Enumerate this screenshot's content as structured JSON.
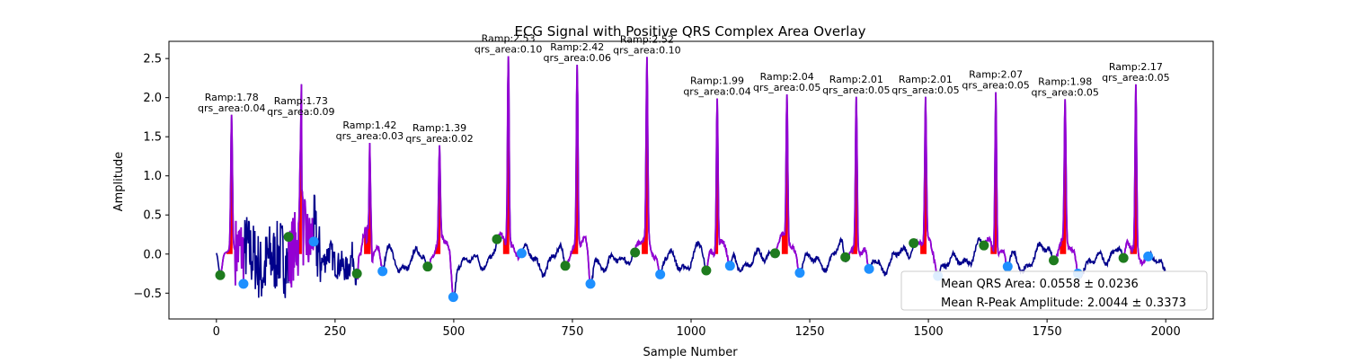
{
  "chart_data": {
    "type": "line",
    "title": "ECG Signal with Positive QRS Complex Area Overlay",
    "xlabel": "Sample Number",
    "ylabel": "Amplitude",
    "xlim": [
      -100,
      2100
    ],
    "ylim": [
      -0.83,
      2.72
    ],
    "xticks": [
      0,
      250,
      500,
      750,
      1000,
      1250,
      1500,
      1750,
      2000
    ],
    "yticks": [
      -0.5,
      0.0,
      0.5,
      1.0,
      1.5,
      2.0,
      2.5
    ],
    "xtick_labels": [
      "0",
      "250",
      "500",
      "750",
      "1000",
      "1250",
      "1500",
      "1750",
      "2000"
    ],
    "ytick_labels": [
      "−0.5",
      "0.0",
      "0.5",
      "1.0",
      "1.5",
      "2.0",
      "2.5"
    ],
    "colors": {
      "signal": "#00008b",
      "qrs_segment": "#9400d3",
      "qrs_area_fill": "#ff0000",
      "q_onset_marker": "#1e7b1e",
      "s_offset_marker": "#1e90ff"
    },
    "r_peaks": [
      {
        "x": 32,
        "y": 1.78,
        "ramp": "Ramp:1.78",
        "qrs_area": "qrs_area:0.04"
      },
      {
        "x": 178,
        "y": 1.73,
        "ramp": "Ramp:1.73",
        "qrs_area": "qrs_area:0.09"
      },
      {
        "x": 323,
        "y": 1.42,
        "ramp": "Ramp:1.42",
        "qrs_area": "qrs_area:0.03"
      },
      {
        "x": 470,
        "y": 1.39,
        "ramp": "Ramp:1.39",
        "qrs_area": "qrs_area:0.02"
      },
      {
        "x": 615,
        "y": 2.53,
        "ramp": "Ramp:2.53",
        "qrs_area": "qrs_area:0.10"
      },
      {
        "x": 760,
        "y": 2.42,
        "ramp": "Ramp:2.42",
        "qrs_area": "qrs_area:0.06"
      },
      {
        "x": 907,
        "y": 2.52,
        "ramp": "Ramp:2.52",
        "qrs_area": "qrs_area:0.10"
      },
      {
        "x": 1055,
        "y": 1.99,
        "ramp": "Ramp:1.99",
        "qrs_area": "qrs_area:0.04"
      },
      {
        "x": 1202,
        "y": 2.04,
        "ramp": "Ramp:2.04",
        "qrs_area": "qrs_area:0.05"
      },
      {
        "x": 1348,
        "y": 2.01,
        "ramp": "Ramp:2.01",
        "qrs_area": "qrs_area:0.05"
      },
      {
        "x": 1494,
        "y": 2.01,
        "ramp": "Ramp:2.01",
        "qrs_area": "qrs_area:0.05"
      },
      {
        "x": 1642,
        "y": 2.07,
        "ramp": "Ramp:2.07",
        "qrs_area": "qrs_area:0.05"
      },
      {
        "x": 1788,
        "y": 1.98,
        "ramp": "Ramp:1.98",
        "qrs_area": "qrs_area:0.05"
      },
      {
        "x": 1937,
        "y": 2.17,
        "ramp": "Ramp:2.17",
        "qrs_area": "qrs_area:0.05"
      }
    ],
    "q_onsets": [
      {
        "x": 8,
        "y": -0.27
      },
      {
        "x": 152,
        "y": 0.22
      },
      {
        "x": 296,
        "y": -0.25
      },
      {
        "x": 445,
        "y": -0.16
      },
      {
        "x": 591,
        "y": 0.19
      },
      {
        "x": 735,
        "y": -0.15
      },
      {
        "x": 882,
        "y": 0.02
      },
      {
        "x": 1032,
        "y": -0.21
      },
      {
        "x": 1177,
        "y": 0.01
      },
      {
        "x": 1325,
        "y": -0.04
      },
      {
        "x": 1469,
        "y": 0.14
      },
      {
        "x": 1617,
        "y": 0.11
      },
      {
        "x": 1764,
        "y": -0.08
      },
      {
        "x": 1911,
        "y": -0.05
      }
    ],
    "s_offsets": [
      {
        "x": 57,
        "y": -0.38
      },
      {
        "x": 205,
        "y": 0.16
      },
      {
        "x": 350,
        "y": -0.22
      },
      {
        "x": 499,
        "y": -0.55
      },
      {
        "x": 643,
        "y": 0.01
      },
      {
        "x": 788,
        "y": -0.38
      },
      {
        "x": 935,
        "y": -0.26
      },
      {
        "x": 1082,
        "y": -0.15
      },
      {
        "x": 1229,
        "y": -0.24
      },
      {
        "x": 1375,
        "y": -0.19
      },
      {
        "x": 1520,
        "y": -0.28
      },
      {
        "x": 1667,
        "y": -0.16
      },
      {
        "x": 1815,
        "y": -0.25
      },
      {
        "x": 1963,
        "y": -0.03
      }
    ],
    "legend": {
      "placement": "lower-right",
      "entries": [
        "Mean QRS Area: 0.0558 ± 0.0236",
        "Mean R-Peak Amplitude: 2.0044 ± 0.3373"
      ]
    }
  }
}
